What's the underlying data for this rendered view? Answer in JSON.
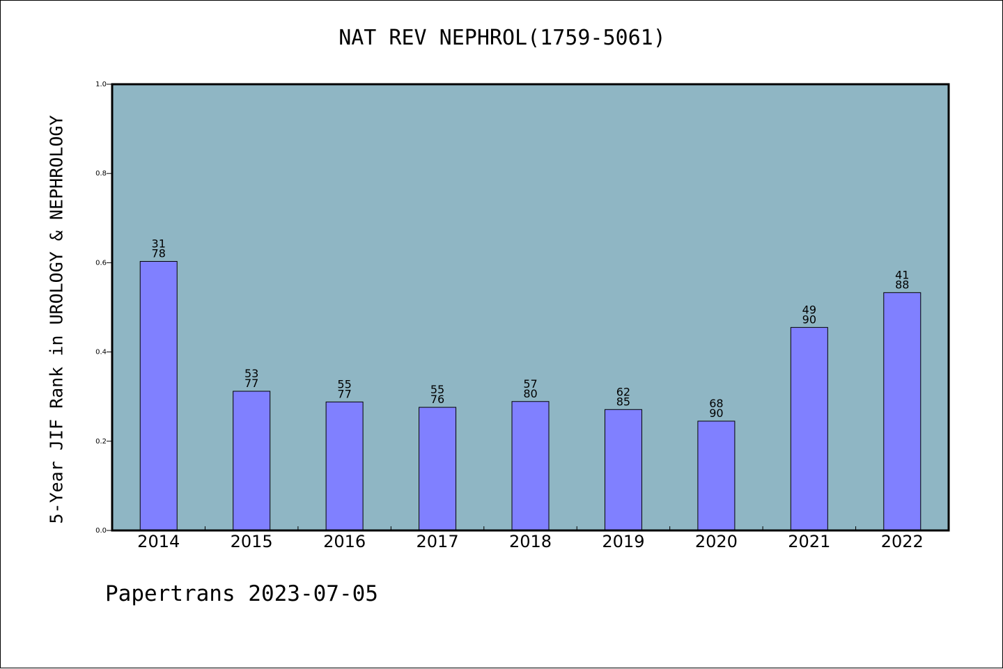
{
  "chart_data": {
    "type": "bar",
    "title": "NAT REV NEPHROL(1759-5061)",
    "ylabel": "5-Year JIF Rank in UROLOGY & NEPHROLOGY",
    "xlabel": "",
    "ylim": [
      0,
      1.0
    ],
    "yticks": [
      "0.0",
      "0.2",
      "0.4",
      "0.6",
      "0.8",
      "1.0"
    ],
    "categories": [
      "2014",
      "2015",
      "2016",
      "2017",
      "2018",
      "2019",
      "2020",
      "2021",
      "2022"
    ],
    "values": [
      0.603,
      0.312,
      0.288,
      0.276,
      0.289,
      0.271,
      0.245,
      0.455,
      0.533
    ],
    "rank": [
      "31",
      "53",
      "55",
      "55",
      "57",
      "62",
      "68",
      "49",
      "41"
    ],
    "total": [
      "78",
      "77",
      "77",
      "76",
      "80",
      "85",
      "90",
      "90",
      "88"
    ],
    "grid": false,
    "legend": "none"
  },
  "footer": "Papertrans 2023-07-05",
  "colors": {
    "plot_background": "#8fb6c4",
    "bar_fill": "#8080ff",
    "bar_stroke": "#000000"
  }
}
